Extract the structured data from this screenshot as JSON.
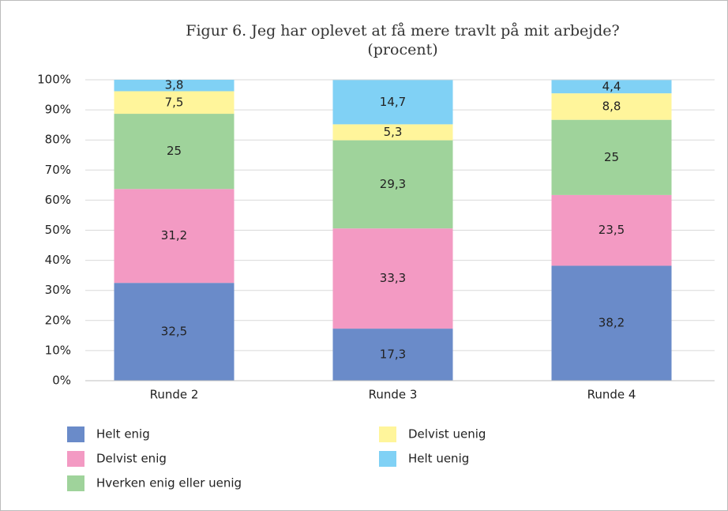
{
  "chart_data": {
    "type": "stacked_bar",
    "title": "Figur 6. Jeg har oplevet at få mere travlt på mit arbejde?",
    "subtitle": "(procent)",
    "categories": [
      "Runde 2",
      "Runde 3",
      "Runde 4"
    ],
    "series": [
      {
        "name": "Helt enig",
        "color": "#6a8bc9",
        "values": [
          32.5,
          17.3,
          38.2
        ],
        "value_labels": [
          "32,5",
          "17,3",
          "38,2"
        ]
      },
      {
        "name": "Delvist enig",
        "color": "#f39ac3",
        "values": [
          31.2,
          33.3,
          23.5
        ],
        "value_labels": [
          "31,2",
          "33,3",
          "23,5"
        ]
      },
      {
        "name": "Hverken enig eller uenig",
        "color": "#9fd39b",
        "values": [
          25,
          29.3,
          25
        ],
        "value_labels": [
          "25",
          "29,3",
          "25"
        ]
      },
      {
        "name": "Delvist uenig",
        "color": "#fff59b",
        "values": [
          7.5,
          5.3,
          8.8
        ],
        "value_labels": [
          "7,5",
          "5,3",
          "8,8"
        ]
      },
      {
        "name": "Helt uenig",
        "color": "#80d1f5",
        "values": [
          3.8,
          14.7,
          4.4
        ],
        "value_labels": [
          "3,8",
          "14,7",
          "4,4"
        ]
      }
    ],
    "ylim": [
      0,
      100
    ],
    "yticks": [
      {
        "value": 0,
        "label": "0%"
      },
      {
        "value": 10,
        "label": "10%"
      },
      {
        "value": 20,
        "label": "20%"
      },
      {
        "value": 30,
        "label": "30%"
      },
      {
        "value": 40,
        "label": "40%"
      },
      {
        "value": 50,
        "label": "50%"
      },
      {
        "value": 60,
        "label": "60%"
      },
      {
        "value": 70,
        "label": "70%"
      },
      {
        "value": 80,
        "label": "80%"
      },
      {
        "value": 90,
        "label": "90%"
      },
      {
        "value": 100,
        "label": "100%"
      }
    ],
    "grid": true
  }
}
